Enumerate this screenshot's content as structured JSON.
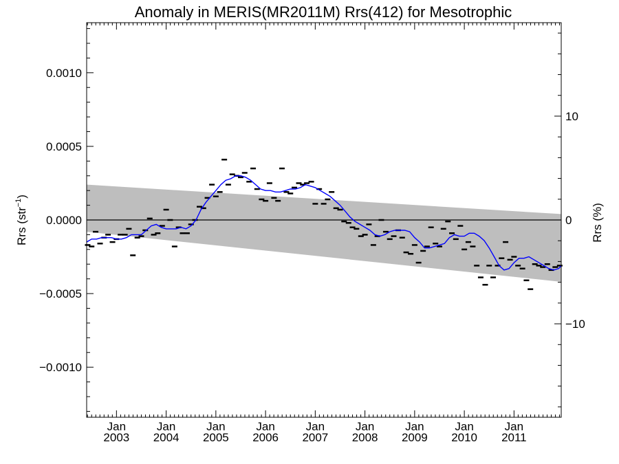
{
  "chart_data": {
    "type": "line",
    "title": "Anomaly in MERIS(MR2011M) Rrs(412) for Mesotrophic",
    "ylabel_left": "Rrs (str",
    "ylabel_left_sup": "−1",
    "ylabel_left_close": ")",
    "ylabel_right": "Rrs (%)",
    "xlim": [
      2002.4,
      2011.95
    ],
    "ylim": [
      -0.00134,
      0.00134
    ],
    "y2lim": [
      -19.0,
      19.0
    ],
    "zero_line": true,
    "x_ticks": [
      {
        "x": 2003.0,
        "top": "Jan",
        "bottom": "2003"
      },
      {
        "x": 2004.0,
        "top": "Jan",
        "bottom": "2004"
      },
      {
        "x": 2005.0,
        "top": "Jan",
        "bottom": "2005"
      },
      {
        "x": 2006.0,
        "top": "Jan",
        "bottom": "2006"
      },
      {
        "x": 2007.0,
        "top": "Jan",
        "bottom": "2007"
      },
      {
        "x": 2008.0,
        "top": "Jan",
        "bottom": "2008"
      },
      {
        "x": 2009.0,
        "top": "Jan",
        "bottom": "2009"
      },
      {
        "x": 2010.0,
        "top": "Jan",
        "bottom": "2010"
      },
      {
        "x": 2011.0,
        "top": "Jan",
        "bottom": "2011"
      }
    ],
    "y_ticks_left": [
      {
        "v": 0.001,
        "label": "0.0010"
      },
      {
        "v": 0.0005,
        "label": "0.0005"
      },
      {
        "v": 0.0,
        "label": "0.0000"
      },
      {
        "v": -0.0005,
        "label": "−0.0005"
      },
      {
        "v": -0.001,
        "label": "−0.0010"
      }
    ],
    "y_ticks_right": [
      {
        "v": 10,
        "label": "10"
      },
      {
        "v": 0,
        "label": "0"
      },
      {
        "v": -10,
        "label": "−10"
      }
    ],
    "band": {
      "x": [
        2002.4,
        2011.95
      ],
      "upper": [
        0.00024,
        4e-05
      ],
      "lower": [
        -8e-05,
        -0.00042
      ],
      "color": "#bebebe"
    },
    "smooth_series": {
      "color": "#0000ff",
      "x": [
        2002.4,
        2002.5,
        2002.6,
        2002.7,
        2002.8,
        2002.9,
        2003.0,
        2003.1,
        2003.2,
        2003.3,
        2003.4,
        2003.5,
        2003.6,
        2003.7,
        2003.8,
        2003.9,
        2004.0,
        2004.1,
        2004.2,
        2004.3,
        2004.4,
        2004.5,
        2004.6,
        2004.7,
        2004.8,
        2004.9,
        2005.0,
        2005.1,
        2005.2,
        2005.3,
        2005.4,
        2005.5,
        2005.6,
        2005.7,
        2005.8,
        2005.9,
        2006.0,
        2006.1,
        2006.2,
        2006.3,
        2006.4,
        2006.5,
        2006.6,
        2006.7,
        2006.8,
        2006.9,
        2007.0,
        2007.1,
        2007.2,
        2007.3,
        2007.4,
        2007.5,
        2007.6,
        2007.7,
        2007.8,
        2007.9,
        2008.0,
        2008.1,
        2008.2,
        2008.3,
        2008.4,
        2008.5,
        2008.6,
        2008.7,
        2008.8,
        2008.9,
        2009.0,
        2009.1,
        2009.2,
        2009.3,
        2009.4,
        2009.5,
        2009.6,
        2009.7,
        2009.8,
        2009.9,
        2010.0,
        2010.1,
        2010.2,
        2010.3,
        2010.4,
        2010.5,
        2010.6,
        2010.7,
        2010.8,
        2010.9,
        2011.0,
        2011.1,
        2011.2,
        2011.3,
        2011.4,
        2011.5,
        2011.6,
        2011.7,
        2011.8,
        2011.9,
        2011.95
      ],
      "y": [
        -0.00015,
        -0.00013,
        -0.00013,
        -0.00012,
        -0.00012,
        -0.00012,
        -0.00013,
        -0.00013,
        -0.00012,
        -0.0001,
        -0.0001,
        -0.0001,
        -7e-05,
        -4e-05,
        -3e-05,
        -5e-05,
        -6e-05,
        -6e-05,
        -6e-05,
        -5e-05,
        -6e-05,
        -4e-05,
        0.0,
        7e-05,
        0.00012,
        0.00016,
        0.0002,
        0.00024,
        0.00027,
        0.00028,
        0.0003,
        0.0003,
        0.00029,
        0.00027,
        0.00024,
        0.00021,
        0.0002,
        0.0002,
        0.00019,
        0.00019,
        0.0002,
        0.00021,
        0.00021,
        0.00022,
        0.00024,
        0.00023,
        0.00022,
        0.0002,
        0.00018,
        0.00016,
        0.00013,
        0.0001,
        6e-05,
        2e-05,
        -1e-05,
        -3e-05,
        -5e-05,
        -7e-05,
        -0.0001,
        -0.00011,
        -0.0001,
        -8e-05,
        -7e-05,
        -7e-05,
        -7e-05,
        -8e-05,
        -0.00012,
        -0.00015,
        -0.00019,
        -0.00019,
        -0.00018,
        -0.00017,
        -0.00016,
        -0.00012,
        -0.0001,
        -0.00011,
        -0.00011,
        -9e-05,
        -9e-05,
        -0.00011,
        -0.00014,
        -0.00019,
        -0.00025,
        -0.00031,
        -0.00034,
        -0.00033,
        -0.00029,
        -0.00026,
        -0.00026,
        -0.00025,
        -0.00027,
        -0.00029,
        -0.00031,
        -0.00033,
        -0.00034,
        -0.00033,
        -0.00031
      ]
    },
    "monthly_points": {
      "color": "#000000",
      "x": [
        2002.42,
        2002.5,
        2002.58,
        2002.67,
        2002.75,
        2002.83,
        2002.92,
        2003.0,
        2003.08,
        2003.17,
        2003.25,
        2003.33,
        2003.42,
        2003.5,
        2003.58,
        2003.67,
        2003.75,
        2003.83,
        2003.92,
        2004.0,
        2004.08,
        2004.17,
        2004.25,
        2004.33,
        2004.42,
        2004.5,
        2004.58,
        2004.67,
        2004.75,
        2004.83,
        2004.92,
        2005.0,
        2005.08,
        2005.17,
        2005.25,
        2005.33,
        2005.42,
        2005.5,
        2005.58,
        2005.67,
        2005.75,
        2005.83,
        2005.92,
        2006.0,
        2006.08,
        2006.17,
        2006.25,
        2006.33,
        2006.42,
        2006.5,
        2006.58,
        2006.67,
        2006.75,
        2006.83,
        2006.92,
        2007.0,
        2007.08,
        2007.17,
        2007.25,
        2007.33,
        2007.42,
        2007.5,
        2007.58,
        2007.67,
        2007.75,
        2007.83,
        2007.92,
        2008.0,
        2008.08,
        2008.17,
        2008.25,
        2008.33,
        2008.42,
        2008.5,
        2008.58,
        2008.67,
        2008.75,
        2008.83,
        2008.92,
        2009.0,
        2009.08,
        2009.17,
        2009.25,
        2009.33,
        2009.42,
        2009.5,
        2009.58,
        2009.67,
        2009.75,
        2009.83,
        2009.92,
        2010.0,
        2010.08,
        2010.17,
        2010.25,
        2010.33,
        2010.42,
        2010.5,
        2010.58,
        2010.67,
        2010.75,
        2010.83,
        2010.92,
        2011.0,
        2011.08,
        2011.17,
        2011.25,
        2011.33,
        2011.42,
        2011.5,
        2011.58,
        2011.67,
        2011.75,
        2011.83,
        2011.92
      ],
      "y": [
        -0.00017,
        -0.00018,
        -8e-05,
        -0.00016,
        -0.00012,
        -0.0001,
        -0.00015,
        -0.00013,
        -0.0001,
        -0.0001,
        -6e-05,
        -0.00024,
        -0.00012,
        -0.00011,
        -7e-05,
        1e-05,
        -0.0001,
        -9e-05,
        -4e-05,
        7e-05,
        0.0,
        -0.00018,
        -5e-05,
        -9e-05,
        -9e-05,
        -3e-05,
        0.0,
        9e-05,
        8e-05,
        0.00015,
        0.00024,
        0.00016,
        0.00019,
        0.00041,
        0.00024,
        0.00031,
        0.0003,
        0.00029,
        0.00032,
        0.00026,
        0.00035,
        0.00021,
        0.00014,
        0.00013,
        0.00025,
        0.00015,
        0.00013,
        0.00035,
        0.00019,
        0.00018,
        0.00022,
        0.00025,
        0.00024,
        0.00025,
        0.00026,
        0.00011,
        0.00021,
        0.00011,
        0.00014,
        0.00019,
        8e-05,
        7e-05,
        -1e-05,
        -2e-05,
        -5e-05,
        -6e-05,
        -0.00011,
        -0.0001,
        -3e-05,
        -0.00017,
        -0.00011,
        0.0,
        -8e-05,
        -0.00013,
        -0.00011,
        -7e-05,
        -0.00012,
        -0.00022,
        -0.00023,
        -0.00017,
        -0.00029,
        -0.00021,
        -0.00018,
        -5e-05,
        -0.00016,
        -0.00018,
        -6e-05,
        -1e-05,
        -9e-05,
        -0.00013,
        -4e-05,
        -0.0002,
        -0.00015,
        -0.00018,
        -0.00031,
        -0.00039,
        -0.00044,
        -0.00031,
        -0.00039,
        -0.00031,
        -0.00026,
        -0.00015,
        -0.00027,
        -0.00025,
        -0.00031,
        -0.00033,
        -0.00041,
        -0.00047,
        -0.0003,
        -0.00031,
        -0.00032,
        -0.0003,
        -0.00034,
        -0.00032,
        -0.00031
      ]
    }
  }
}
